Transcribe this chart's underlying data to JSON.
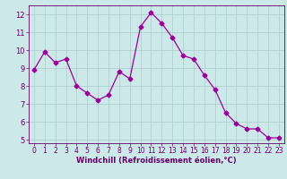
{
  "x": [
    0,
    1,
    2,
    3,
    4,
    5,
    6,
    7,
    8,
    9,
    10,
    11,
    12,
    13,
    14,
    15,
    16,
    17,
    18,
    19,
    20,
    21,
    22,
    23
  ],
  "y": [
    8.9,
    9.9,
    9.3,
    9.5,
    8.0,
    7.6,
    7.2,
    7.5,
    8.8,
    8.4,
    11.3,
    12.1,
    11.5,
    10.7,
    9.7,
    9.5,
    8.6,
    7.8,
    6.5,
    5.9,
    5.6,
    5.6,
    5.1,
    5.1
  ],
  "line_color": "#990099",
  "marker": "D",
  "markersize": 2.5,
  "linewidth": 0.9,
  "bg_color": "#cce8e8",
  "grid_color": "#aacccc",
  "xlabel": "Windchill (Refroidissement éolien,°C)",
  "xlabel_color": "#660066",
  "tick_color": "#660066",
  "ylim": [
    4.8,
    12.5
  ],
  "xlim": [
    -0.5,
    23.5
  ],
  "yticks": [
    5,
    6,
    7,
    8,
    9,
    10,
    11,
    12
  ],
  "xticks": [
    0,
    1,
    2,
    3,
    4,
    5,
    6,
    7,
    8,
    9,
    10,
    11,
    12,
    13,
    14,
    15,
    16,
    17,
    18,
    19,
    20,
    21,
    22,
    23
  ],
  "tick_fontsize": 5.5,
  "xlabel_fontsize": 6.0
}
